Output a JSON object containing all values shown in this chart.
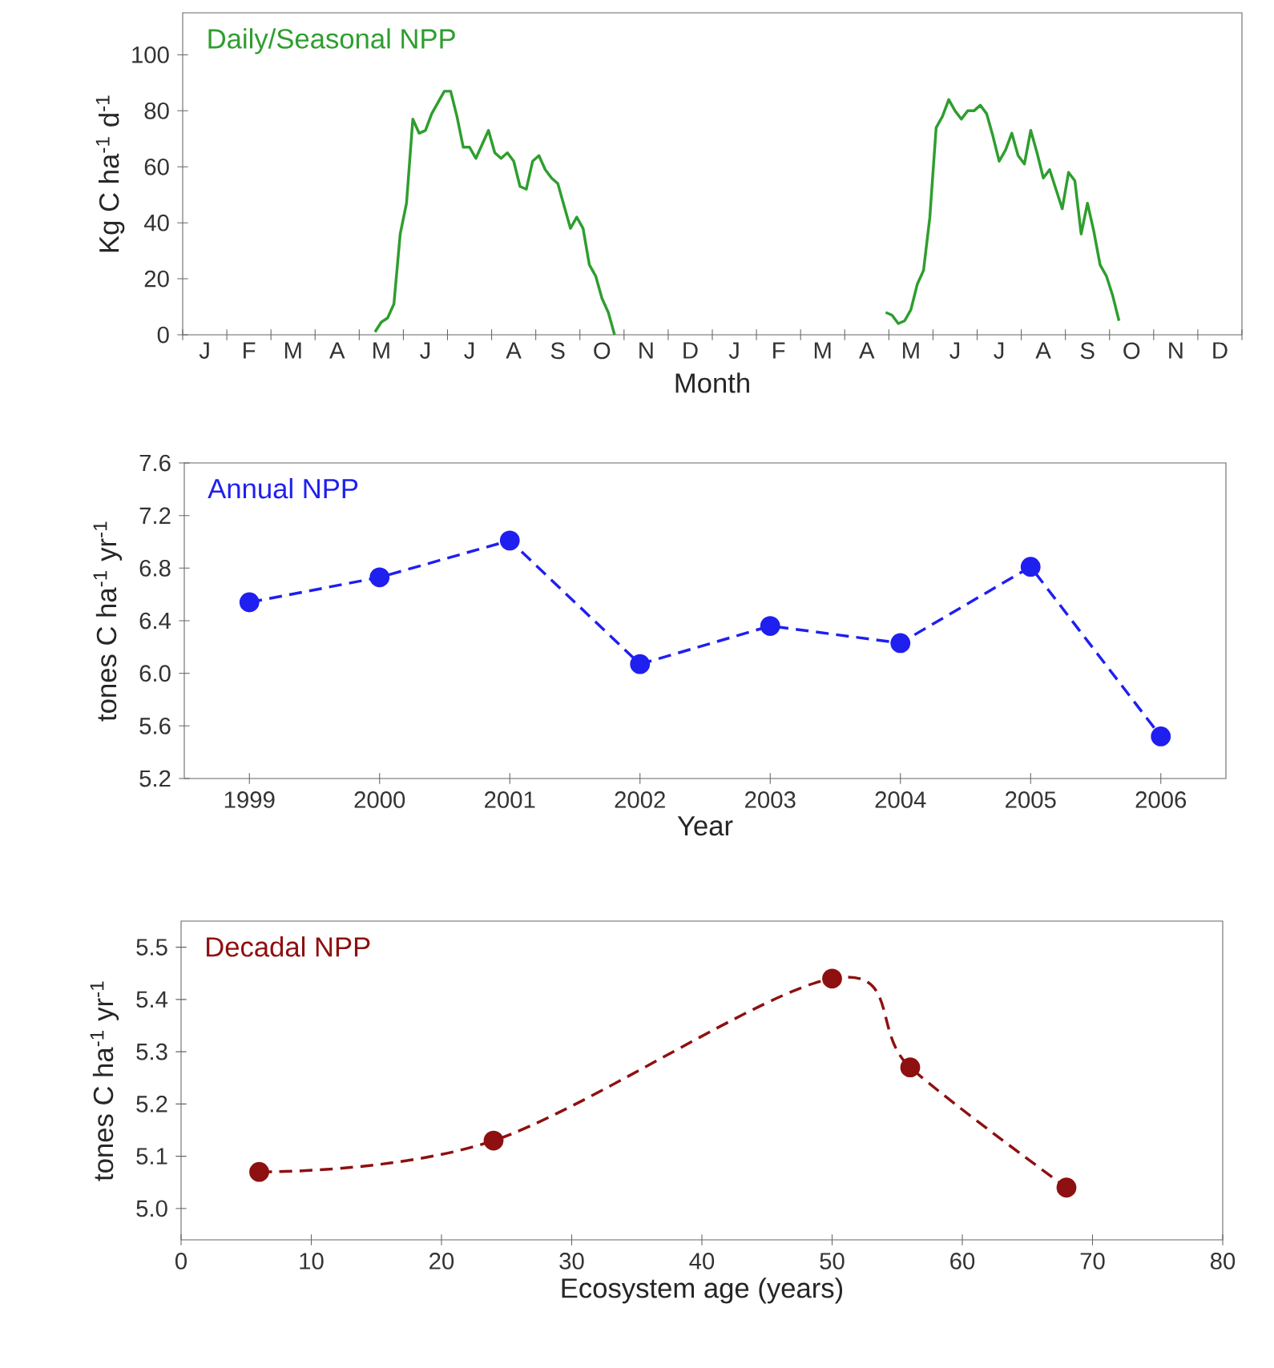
{
  "chart_data": [
    {
      "type": "line",
      "title": "Daily/Seasonal NPP",
      "xlabel": "Month",
      "ylabel": "Kg C ha$^{-1}$ d$^{-1}$",
      "categories": [
        null,
        null,
        null,
        "J",
        null,
        null,
        null,
        null,
        null,
        null,
        "F",
        null,
        null,
        null,
        null,
        null,
        null,
        "M",
        null,
        null,
        null,
        null,
        null,
        null,
        "A",
        null,
        null,
        null,
        null,
        null,
        null,
        "M",
        null,
        null,
        null,
        null,
        null,
        null,
        "J",
        null,
        null,
        null,
        null,
        null,
        null,
        "J",
        null,
        null,
        null,
        null,
        null,
        null,
        "A",
        null,
        null,
        null,
        null,
        null,
        null,
        "S",
        null,
        null,
        null,
        null,
        null,
        null,
        "O",
        null,
        null,
        null,
        null,
        null,
        null,
        "N",
        null,
        null,
        null,
        null,
        null,
        null,
        "D",
        null,
        null,
        null,
        null,
        null,
        null,
        "J",
        null,
        null,
        null,
        null,
        null,
        null,
        "F",
        null,
        null,
        null,
        null,
        null,
        null,
        "M",
        null,
        null,
        null,
        null,
        null,
        null,
        "A",
        null,
        null,
        null,
        null,
        null,
        null,
        "M",
        null,
        null,
        null,
        null,
        null,
        null,
        "J",
        null,
        null,
        null,
        null,
        null,
        null,
        "J",
        null,
        null,
        null,
        null,
        null,
        null,
        "A",
        null,
        null,
        null,
        null,
        null,
        null,
        "S",
        null,
        null,
        null,
        null,
        null,
        null,
        "O",
        null,
        null,
        null,
        null,
        null,
        null,
        "N",
        null,
        null,
        null,
        null,
        null,
        null,
        "D",
        null,
        null,
        null
      ],
      "ylim": [
        0,
        115
      ],
      "yticks": [
        0,
        20,
        40,
        60,
        80,
        100
      ],
      "marker": "none",
      "line_style": "solid",
      "series": [
        {
          "color": "#2e9e2e",
          "values": [
            null,
            null,
            null,
            null,
            null,
            null,
            null,
            null,
            null,
            null,
            null,
            null,
            null,
            null,
            null,
            null,
            null,
            null,
            null,
            null,
            null,
            null,
            null,
            null,
            null,
            null,
            null,
            null,
            null,
            null,
            1,
            4.5,
            6,
            11,
            36,
            47,
            77,
            72,
            73,
            79,
            83,
            87,
            87,
            78,
            67,
            67,
            63,
            68,
            73,
            65,
            63,
            65,
            62,
            53,
            52,
            62,
            64,
            59,
            56,
            54,
            46,
            38,
            42,
            38,
            25,
            21,
            13,
            8,
            0,
            null,
            null,
            null,
            null,
            null,
            null,
            null,
            null,
            null,
            null,
            null,
            null,
            null,
            null,
            null,
            null,
            null,
            null,
            null,
            null,
            null,
            null,
            null,
            null,
            null,
            null,
            null,
            null,
            null,
            null,
            null,
            null,
            null,
            null,
            null,
            null,
            null,
            null,
            null,
            null,
            null,
            null,
            8,
            7,
            4,
            5,
            9,
            18,
            23,
            42,
            74,
            78,
            84,
            80,
            77,
            80,
            80,
            82,
            79,
            71,
            62,
            66,
            72,
            64,
            61,
            73,
            65,
            56,
            59,
            52,
            45,
            58,
            55,
            36,
            47,
            37,
            25,
            21,
            14,
            5,
            null,
            null,
            null,
            null,
            null,
            null,
            null,
            null,
            null,
            null,
            null,
            null,
            null,
            null,
            null,
            null,
            null,
            null,
            null
          ]
        }
      ]
    },
    {
      "type": "line",
      "title": "Annual NPP",
      "xlabel": "Year",
      "ylabel": "tones C ha$^{-1}$ yr$^{-1}$",
      "xlim": [
        1998.5,
        2006.5
      ],
      "ylim": [
        5.2,
        7.6
      ],
      "xticks": [
        1999,
        2000,
        2001,
        2002,
        2003,
        2004,
        2005,
        2006
      ],
      "yticks": [
        5.2,
        5.6,
        {
          "value": 6,
          "label": "6.0"
        },
        6.4,
        6.8,
        7.2,
        7.6
      ],
      "marker": "circle",
      "line_style": "dashed",
      "series": [
        {
          "color": "#1f1ff0",
          "x": [
            1999,
            2000,
            2001,
            2002,
            2003,
            2004,
            2005,
            2006
          ],
          "values": [
            6.54,
            6.73,
            7.01,
            6.07,
            6.36,
            6.23,
            6.81,
            5.52
          ]
        }
      ]
    },
    {
      "type": "line",
      "title": "Decadal NPP",
      "xlabel": "Ecosystem age (years)",
      "ylabel": "tones C ha$^{-1}$ yr$^{-1}$",
      "xlim": [
        0,
        80
      ],
      "ylim": [
        4.94,
        5.55
      ],
      "xticks": [
        0,
        10,
        20,
        30,
        40,
        50,
        60,
        70,
        80
      ],
      "yticks": [
        {
          "value": 5,
          "label": "5.0"
        },
        5.1,
        5.2,
        5.3,
        5.4,
        5.5
      ],
      "marker": "circle",
      "line_style": "dashed",
      "series": [
        {
          "color": "#8e1010",
          "x": [
            6,
            24,
            50,
            56,
            68
          ],
          "values": [
            5.07,
            5.13,
            5.44,
            5.27,
            5.04
          ]
        }
      ]
    }
  ]
}
